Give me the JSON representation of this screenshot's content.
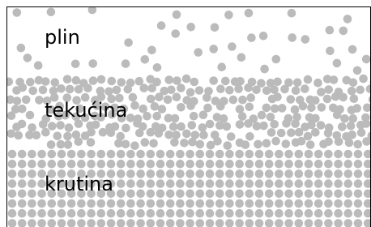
{
  "labels": {
    "gas": "plin",
    "liquid": "tekućina",
    "solid": "krutina"
  }
}
